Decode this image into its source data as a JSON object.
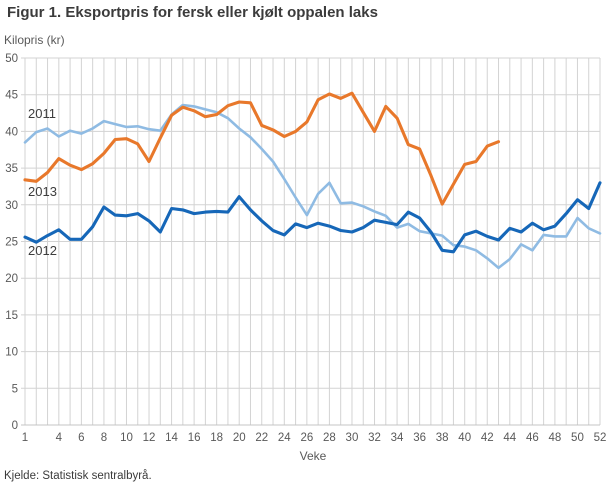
{
  "title": "Figur 1. Eksportpris for fersk eller kjølt oppalen laks",
  "source": "Kjelde: Statistisk sentralbyrå.",
  "colors": {
    "grid": "#d3d3d3",
    "axis_line": "#c4c4c4",
    "tick_text": "#595959",
    "series_2011": "#8fbbe3",
    "series_2012": "#1667b8",
    "series_2013": "#e8782b"
  },
  "chart_data": {
    "type": "line",
    "title": "Figur 1. Eksportpris for fersk eller kjølt oppalen laks",
    "ylabel": "Kilopris (kr)",
    "xlabel": "Veke",
    "xlim": [
      1,
      52
    ],
    "ylim": [
      0,
      50
    ],
    "grid": true,
    "legend_position": "inline-labels-left",
    "x_ticks": [
      1,
      4,
      6,
      8,
      10,
      12,
      14,
      16,
      18,
      20,
      22,
      24,
      26,
      28,
      30,
      32,
      34,
      36,
      38,
      40,
      42,
      44,
      46,
      48,
      50,
      52
    ],
    "y_ticks": [
      0,
      5,
      10,
      15,
      20,
      25,
      30,
      35,
      40,
      45,
      50
    ],
    "x": "week numbers 1-52, weekly vertical gridlines",
    "series": [
      {
        "name": "2011",
        "color": "#8fbbe3",
        "start_week": 1,
        "values": [
          38.5,
          39.9,
          40.4,
          39.3,
          40.1,
          39.7,
          40.4,
          41.4,
          41.0,
          40.6,
          40.7,
          40.3,
          40.1,
          42.3,
          43.6,
          43.4,
          43.0,
          42.6,
          41.8,
          40.4,
          39.2,
          37.6,
          35.9,
          33.5,
          31.0,
          28.6,
          31.5,
          33.0,
          30.2,
          30.3,
          29.8,
          29.1,
          28.5,
          26.9,
          27.4,
          26.4,
          26.1,
          25.8,
          24.5,
          24.3,
          23.8,
          22.7,
          21.4,
          22.6,
          24.6,
          23.8,
          25.9,
          25.7,
          25.7,
          28.2,
          26.8,
          26.1
        ]
      },
      {
        "name": "2013",
        "color": "#e8782b",
        "start_week": 1,
        "values": [
          33.4,
          33.2,
          34.4,
          36.3,
          35.4,
          34.8,
          35.6,
          37.0,
          38.9,
          39.0,
          38.3,
          35.9,
          39.1,
          42.2,
          43.3,
          42.8,
          42.0,
          42.3,
          43.5,
          44.0,
          43.9,
          40.8,
          40.2,
          39.3,
          40.0,
          41.3,
          44.3,
          45.1,
          44.5,
          45.2,
          42.6,
          40.0,
          43.4,
          41.8,
          38.2,
          37.6,
          34.0,
          30.1,
          32.8,
          35.5,
          35.9,
          38.0,
          38.6
        ]
      },
      {
        "name": "2012",
        "color": "#1667b8",
        "start_week": 1,
        "values": [
          25.6,
          24.9,
          25.8,
          26.6,
          25.3,
          25.3,
          27.0,
          29.7,
          28.6,
          28.5,
          28.8,
          27.8,
          26.3,
          29.5,
          29.3,
          28.8,
          29.0,
          29.1,
          29.0,
          31.1,
          29.3,
          27.8,
          26.5,
          25.9,
          27.4,
          26.9,
          27.5,
          27.1,
          26.5,
          26.3,
          26.9,
          27.9,
          27.6,
          27.3,
          29.0,
          28.2,
          26.3,
          23.8,
          23.6,
          25.9,
          26.4,
          25.7,
          25.2,
          26.8,
          26.3,
          27.5,
          26.6,
          27.1,
          28.8,
          30.7,
          29.5,
          33.0
        ]
      }
    ]
  }
}
